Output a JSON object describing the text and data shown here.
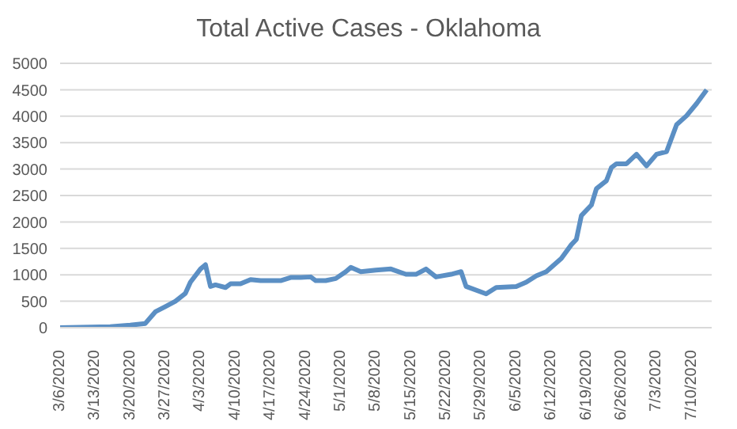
{
  "chart_data": {
    "type": "line",
    "title": "Total Active Cases - Oklahoma",
    "x": [
      "2020-03-06",
      "2020-03-16",
      "2020-03-20",
      "2020-03-23",
      "2020-03-25",
      "2020-03-27",
      "2020-03-29",
      "2020-03-31",
      "2020-04-01",
      "2020-04-03",
      "2020-04-04",
      "2020-04-05",
      "2020-04-06",
      "2020-04-08",
      "2020-04-09",
      "2020-04-11",
      "2020-04-13",
      "2020-04-15",
      "2020-04-19",
      "2020-04-21",
      "2020-04-23",
      "2020-04-25",
      "2020-04-26",
      "2020-04-28",
      "2020-04-30",
      "2020-05-02",
      "2020-05-03",
      "2020-05-05",
      "2020-05-08",
      "2020-05-11",
      "2020-05-14",
      "2020-05-16",
      "2020-05-18",
      "2020-05-20",
      "2020-05-23",
      "2020-05-25",
      "2020-05-26",
      "2020-05-30",
      "2020-06-01",
      "2020-06-05",
      "2020-06-07",
      "2020-06-09",
      "2020-06-11",
      "2020-06-14",
      "2020-06-16",
      "2020-06-17",
      "2020-06-18",
      "2020-06-20",
      "2020-06-21",
      "2020-06-23",
      "2020-06-24",
      "2020-06-25",
      "2020-06-27",
      "2020-06-29",
      "2020-07-01",
      "2020-07-03",
      "2020-07-05",
      "2020-07-07",
      "2020-07-09",
      "2020-07-11",
      "2020-07-13"
    ],
    "series": [
      {
        "color": "#5b8fc4",
        "values": [
          0,
          20,
          50,
          80,
          300,
          400,
          500,
          650,
          860,
          1110,
          1190,
          780,
          810,
          760,
          830,
          830,
          910,
          890,
          890,
          950,
          950,
          960,
          890,
          890,
          930,
          1060,
          1140,
          1060,
          1090,
          1110,
          1010,
          1010,
          1110,
          960,
          1010,
          1060,
          780,
          640,
          760,
          780,
          860,
          980,
          1060,
          1310,
          1570,
          1670,
          2120,
          2320,
          2630,
          2780,
          3030,
          3100,
          3100,
          3280,
          3060,
          3280,
          3330,
          3840,
          4010,
          4240,
          4500
        ]
      }
    ],
    "xlim": [
      "2020-03-06",
      "2020-07-14"
    ],
    "xticks": [
      {
        "value": "2020-03-06",
        "label": "3/6/2020"
      },
      {
        "value": "2020-03-13",
        "label": "3/13/2020"
      },
      {
        "value": "2020-03-20",
        "label": "3/20/2020"
      },
      {
        "value": "2020-03-27",
        "label": "3/27/2020"
      },
      {
        "value": "2020-04-03",
        "label": "4/3/2020"
      },
      {
        "value": "2020-04-10",
        "label": "4/10/2020"
      },
      {
        "value": "2020-04-17",
        "label": "4/17/2020"
      },
      {
        "value": "2020-04-24",
        "label": "4/24/2020"
      },
      {
        "value": "2020-05-01",
        "label": "5/1/2020"
      },
      {
        "value": "2020-05-08",
        "label": "5/8/2020"
      },
      {
        "value": "2020-05-15",
        "label": "5/15/2020"
      },
      {
        "value": "2020-05-22",
        "label": "5/22/2020"
      },
      {
        "value": "2020-05-29",
        "label": "5/29/2020"
      },
      {
        "value": "2020-06-05",
        "label": "6/5/2020"
      },
      {
        "value": "2020-06-12",
        "label": "6/12/2020"
      },
      {
        "value": "2020-06-19",
        "label": "6/19/2020"
      },
      {
        "value": "2020-06-26",
        "label": "6/26/2020"
      },
      {
        "value": "2020-07-03",
        "label": "7/3/2020"
      },
      {
        "value": "2020-07-10",
        "label": "7/10/2020"
      }
    ],
    "ylim": [
      0,
      5000
    ],
    "yticks": [
      0,
      500,
      1000,
      1500,
      2000,
      2500,
      3000,
      3500,
      4000,
      4500,
      5000
    ],
    "grid": "y",
    "legend": false,
    "marker": "none",
    "line_style": "solid"
  }
}
